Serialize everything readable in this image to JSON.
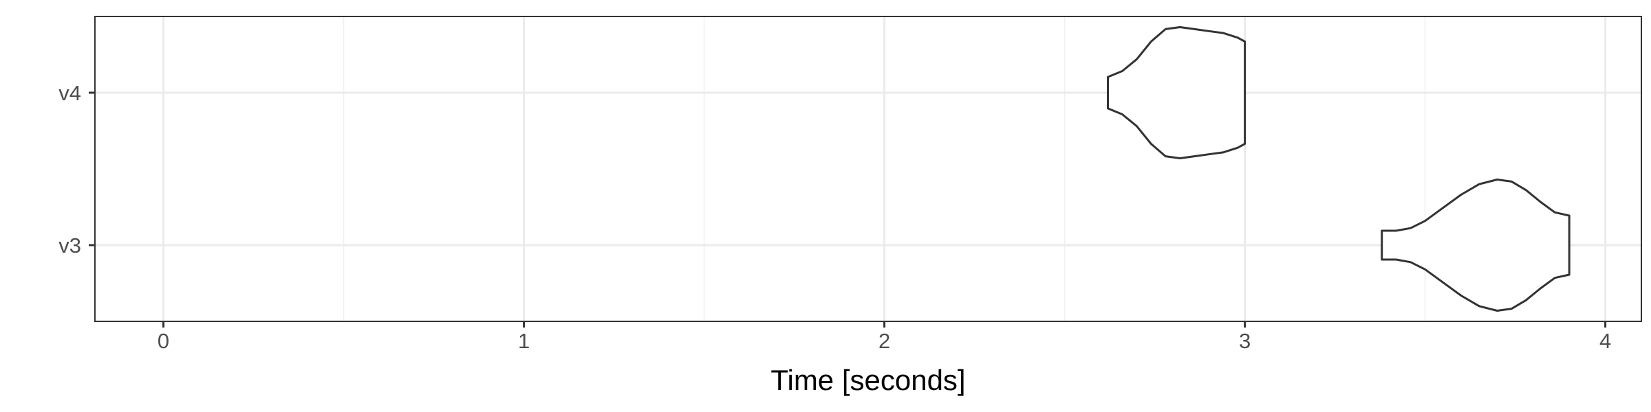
{
  "chart_data": {
    "type": "violin",
    "title": "",
    "xlabel": "Time [seconds]",
    "ylabel": "",
    "xlim": [
      -0.19,
      4.1
    ],
    "x_ticks": [
      0,
      1,
      2,
      3,
      4
    ],
    "x_tick_labels": [
      "0",
      "1",
      "2",
      "3",
      "4"
    ],
    "grid": true,
    "categories": [
      "v3",
      "v4"
    ],
    "series": [
      {
        "category": "v4",
        "min": 2.62,
        "max": 3.0,
        "profile": [
          [
            2.62,
            0.24
          ],
          [
            2.66,
            0.33
          ],
          [
            2.7,
            0.51
          ],
          [
            2.74,
            0.78
          ],
          [
            2.78,
            0.97
          ],
          [
            2.82,
            1.0
          ],
          [
            2.86,
            0.97
          ],
          [
            2.9,
            0.94
          ],
          [
            2.94,
            0.91
          ],
          [
            2.98,
            0.84
          ],
          [
            3.0,
            0.78
          ]
        ]
      },
      {
        "category": "v3",
        "min": 3.38,
        "max": 3.9,
        "profile": [
          [
            3.38,
            0.22
          ],
          [
            3.42,
            0.22
          ],
          [
            3.46,
            0.26
          ],
          [
            3.5,
            0.37
          ],
          [
            3.55,
            0.57
          ],
          [
            3.6,
            0.77
          ],
          [
            3.65,
            0.93
          ],
          [
            3.7,
            1.0
          ],
          [
            3.74,
            0.97
          ],
          [
            3.78,
            0.84
          ],
          [
            3.82,
            0.66
          ],
          [
            3.86,
            0.5
          ],
          [
            3.9,
            0.45
          ]
        ]
      }
    ]
  }
}
